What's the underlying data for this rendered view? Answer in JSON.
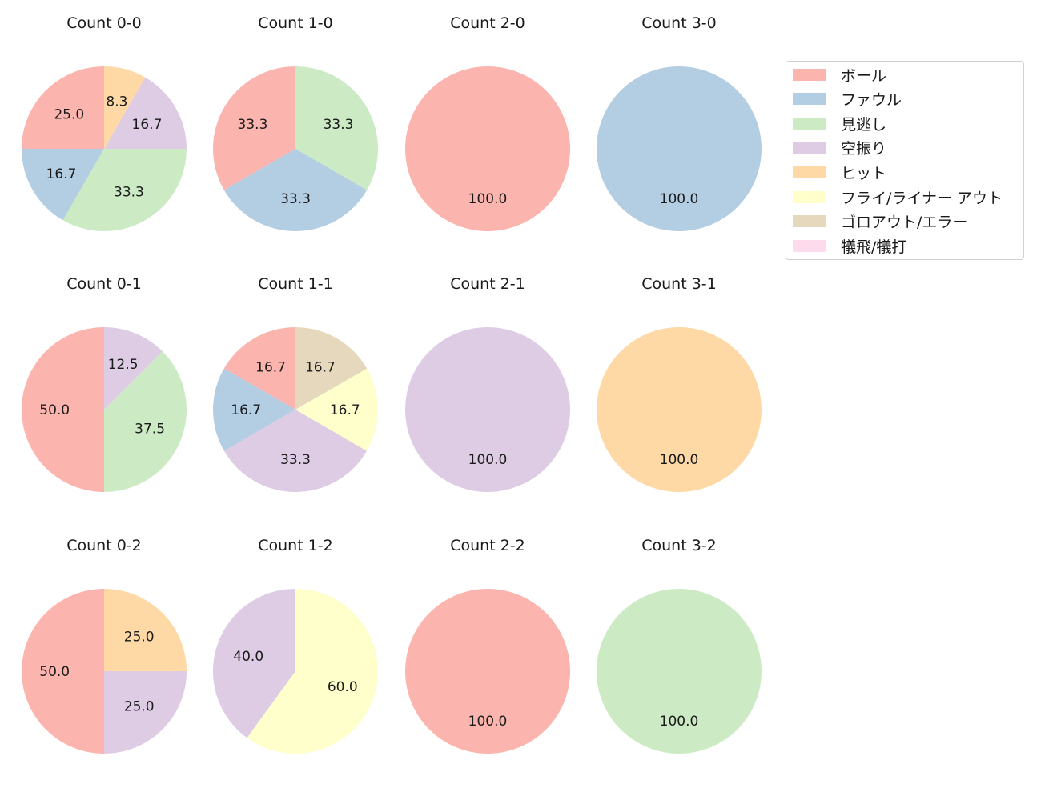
{
  "legend": {
    "items": [
      {
        "label": "ボール",
        "color": "#fbb4ae"
      },
      {
        "label": "ファウル",
        "color": "#b3cde3"
      },
      {
        "label": "見逃し",
        "color": "#ccebc5"
      },
      {
        "label": "空振り",
        "color": "#decbe4"
      },
      {
        "label": "ヒット",
        "color": "#fed9a6"
      },
      {
        "label": "フライ/ライナー アウト",
        "color": "#ffffcc"
      },
      {
        "label": "ゴロアウト/エラー",
        "color": "#e5d8bd"
      },
      {
        "label": "犠飛/犠打",
        "color": "#fddaec"
      }
    ]
  },
  "chart_data": [
    {
      "type": "pie",
      "title": "Count 0-0",
      "categories": [
        "ボール",
        "ファウル",
        "見逃し",
        "空振り",
        "ヒット"
      ],
      "values": [
        25.0,
        16.7,
        33.3,
        16.7,
        8.3
      ]
    },
    {
      "type": "pie",
      "title": "Count 1-0",
      "categories": [
        "ボール",
        "ファウル",
        "見逃し"
      ],
      "values": [
        33.3,
        33.3,
        33.3
      ]
    },
    {
      "type": "pie",
      "title": "Count 2-0",
      "categories": [
        "ボール"
      ],
      "values": [
        100.0
      ]
    },
    {
      "type": "pie",
      "title": "Count 3-0",
      "categories": [
        "ファウル"
      ],
      "values": [
        100.0
      ]
    },
    {
      "type": "pie",
      "title": "Count 0-1",
      "categories": [
        "ボール",
        "見逃し",
        "空振り"
      ],
      "values": [
        50.0,
        37.5,
        12.5
      ]
    },
    {
      "type": "pie",
      "title": "Count 1-1",
      "categories": [
        "ボール",
        "ファウル",
        "空振り",
        "フライ/ライナー アウト",
        "ゴロアウト/エラー"
      ],
      "values": [
        16.7,
        16.7,
        33.3,
        16.7,
        16.7
      ]
    },
    {
      "type": "pie",
      "title": "Count 2-1",
      "categories": [
        "空振り"
      ],
      "values": [
        100.0
      ]
    },
    {
      "type": "pie",
      "title": "Count 3-1",
      "categories": [
        "ヒット"
      ],
      "values": [
        100.0
      ]
    },
    {
      "type": "pie",
      "title": "Count 0-2",
      "categories": [
        "ボール",
        "空振り",
        "ヒット"
      ],
      "values": [
        50.0,
        25.0,
        25.0
      ]
    },
    {
      "type": "pie",
      "title": "Count 1-2",
      "categories": [
        "空振り",
        "フライ/ライナー アウト"
      ],
      "values": [
        40.0,
        60.0
      ]
    },
    {
      "type": "pie",
      "title": "Count 2-2",
      "categories": [
        "ボール"
      ],
      "values": [
        100.0
      ]
    },
    {
      "type": "pie",
      "title": "Count 3-2",
      "categories": [
        "見逃し"
      ],
      "values": [
        100.0
      ]
    }
  ]
}
